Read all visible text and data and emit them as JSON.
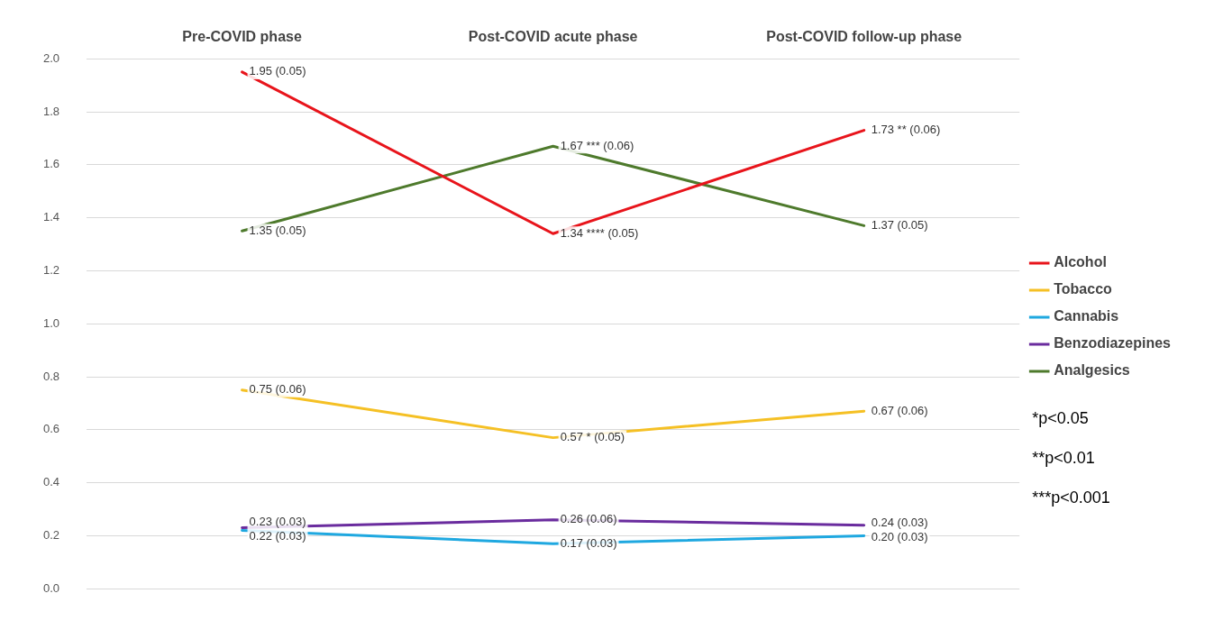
{
  "chart_data": {
    "type": "line",
    "categories": [
      "Pre-COVID phase",
      "Post-COVID acute phase",
      "Post-COVID follow-up phase"
    ],
    "series": [
      {
        "name": "Alcohol",
        "color": "#e8141b",
        "values": [
          1.95,
          1.34,
          1.73
        ],
        "value_labels": [
          "1.95 (0.05)",
          "1.34 **** (0.05)",
          "1.73 ** (0.06)"
        ]
      },
      {
        "name": "Tobacco",
        "color": "#f5c024",
        "values": [
          0.75,
          0.57,
          0.67
        ],
        "value_labels": [
          "0.75 (0.06)",
          "0.57 * (0.05)",
          "0.67 (0.06)"
        ]
      },
      {
        "name": "Cannabis",
        "color": "#1fa8e0",
        "values": [
          0.22,
          0.17,
          0.2
        ],
        "value_labels": [
          "0.22 (0.03)",
          "0.17 (0.03)",
          "0.20 (0.03)"
        ]
      },
      {
        "name": "Benzodiazepines",
        "color": "#6a2c9e",
        "values": [
          0.23,
          0.26,
          0.24
        ],
        "value_labels": [
          "0.23 (0.03)",
          "0.26 (0.06)",
          "0.24 (0.03)"
        ]
      },
      {
        "name": "Analgesics",
        "color": "#4e7a2c",
        "values": [
          1.35,
          1.67,
          1.37
        ],
        "value_labels": [
          "1.35 (0.05)",
          "1.67 *** (0.06)",
          "1.37 (0.05)"
        ]
      }
    ],
    "ylim": [
      0,
      2
    ],
    "yticks": [
      {
        "value": 0,
        "label": "0.0"
      },
      {
        "value": 0.2,
        "label": "0.2"
      },
      {
        "value": 0.4,
        "label": "0.4"
      },
      {
        "value": 0.6,
        "label": "0.6"
      },
      {
        "value": 0.8,
        "label": "0.8"
      },
      {
        "value": 1,
        "label": "1.0"
      },
      {
        "value": 1.2,
        "label": "1.2"
      },
      {
        "value": 1.4,
        "label": "1.4"
      },
      {
        "value": 1.6,
        "label": "1.6"
      },
      {
        "value": 1.8,
        "label": "1.8"
      },
      {
        "value": 2,
        "label": "2.0"
      }
    ],
    "grid": "y",
    "legend": "right",
    "marker": "none",
    "line_style": "solid",
    "annotations": [
      "*p<0.05",
      "**p<0.01",
      "***p<0.001"
    ]
  }
}
